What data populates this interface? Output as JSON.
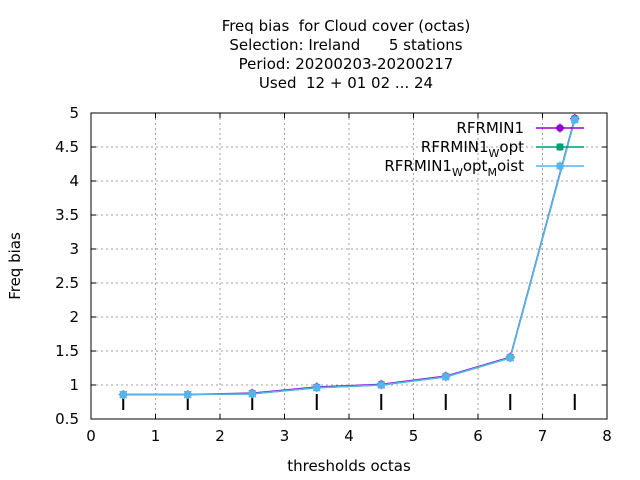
{
  "chart_data": {
    "type": "line",
    "title_lines": [
      "Freq bias  for Cloud cover (octas)",
      "Selection: Ireland      5 stations",
      "Period: 20200203-20200217",
      "Used  12 + 01 02 ... 24"
    ],
    "xlabel": "thresholds octas",
    "ylabel": "Freq bias",
    "xlim": [
      0,
      8
    ],
    "ylim": [
      0.5,
      5
    ],
    "x_ticks": [
      "0",
      "1",
      "2",
      "3",
      "4",
      "5",
      "6",
      "7",
      "8"
    ],
    "y_ticks": [
      "0.5",
      "1",
      "1.5",
      "2",
      "2.5",
      "3",
      "3.5",
      "4",
      "4.5",
      "5"
    ],
    "grid": true,
    "legend_position": "top-right",
    "x": [
      0.5,
      1.5,
      2.5,
      3.5,
      4.5,
      5.5,
      6.5,
      7.5
    ],
    "series": [
      {
        "legend": {
          "base": "RFRMIN1",
          "parts": []
        },
        "color": "#9400d3",
        "marker": "plus-circle",
        "values": [
          0.86,
          0.86,
          0.88,
          0.97,
          1.01,
          1.13,
          1.41,
          4.92
        ]
      },
      {
        "legend": {
          "base": "RFRMIN1",
          "parts": [
            [
              "W",
              "opt"
            ]
          ]
        },
        "color": "#009e73",
        "marker": "cross-circle",
        "values": [
          0.86,
          0.86,
          0.87,
          0.96,
          1.0,
          1.12,
          1.4,
          4.91
        ]
      },
      {
        "legend": {
          "base": "RFRMIN1",
          "parts": [
            [
              "W",
              "opt"
            ],
            [
              "M",
              "oist"
            ]
          ]
        },
        "color": "#56b4e9",
        "marker": "asterisk-circle",
        "values": [
          0.86,
          0.86,
          0.87,
          0.96,
          1.0,
          1.12,
          1.4,
          4.9
        ]
      }
    ],
    "baseline_marks_y": 0.75
  }
}
